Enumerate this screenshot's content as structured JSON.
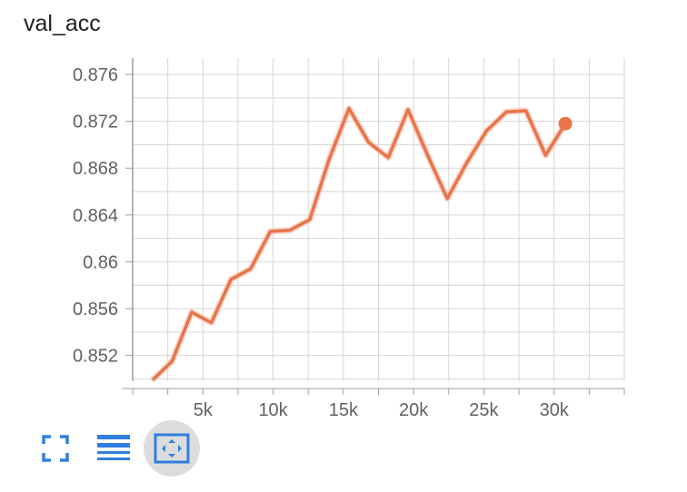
{
  "chart_data": {
    "type": "line",
    "title": "val_acc",
    "xlabel": "",
    "ylabel": "",
    "x": [
      1500,
      2800,
      4200,
      5600,
      7000,
      8400,
      9800,
      11200,
      12600,
      14000,
      15400,
      16800,
      18200,
      19600,
      21000,
      22400,
      23800,
      25200,
      26600,
      28000,
      29400,
      30800
    ],
    "series": [
      {
        "values": [
          0.85,
          0.8515,
          0.8557,
          0.8548,
          0.8585,
          0.8594,
          0.8626,
          0.8627,
          0.8636,
          0.8688,
          0.8731,
          0.8702,
          0.8689,
          0.873,
          0.8691,
          0.8654,
          0.8685,
          0.8712,
          0.8728,
          0.8729,
          0.8691,
          0.8718
        ]
      }
    ],
    "xticks": [
      5000,
      10000,
      15000,
      20000,
      25000,
      30000
    ],
    "xtick_labels": [
      "5k",
      "10k",
      "15k",
      "20k",
      "25k",
      "30k"
    ],
    "yticks": [
      0.852,
      0.856,
      0.86,
      0.864,
      0.868,
      0.872,
      0.876
    ],
    "ytick_labels": [
      "0.852",
      "0.856",
      "0.86",
      "0.864",
      "0.868",
      "0.872",
      "0.876"
    ],
    "xlim": [
      0,
      35000
    ],
    "ylim": [
      0.8498,
      0.8774
    ],
    "grid": true,
    "line_color": "#e8744a",
    "shadow_color": "#f6c6b2"
  },
  "toolbar": {
    "buttons": [
      {
        "icon": "fullscreen-icon",
        "active": false
      },
      {
        "icon": "list-icon",
        "active": false
      },
      {
        "icon": "fit-domain-icon",
        "active": true
      }
    ],
    "icon_color": "#2f7fe0"
  }
}
